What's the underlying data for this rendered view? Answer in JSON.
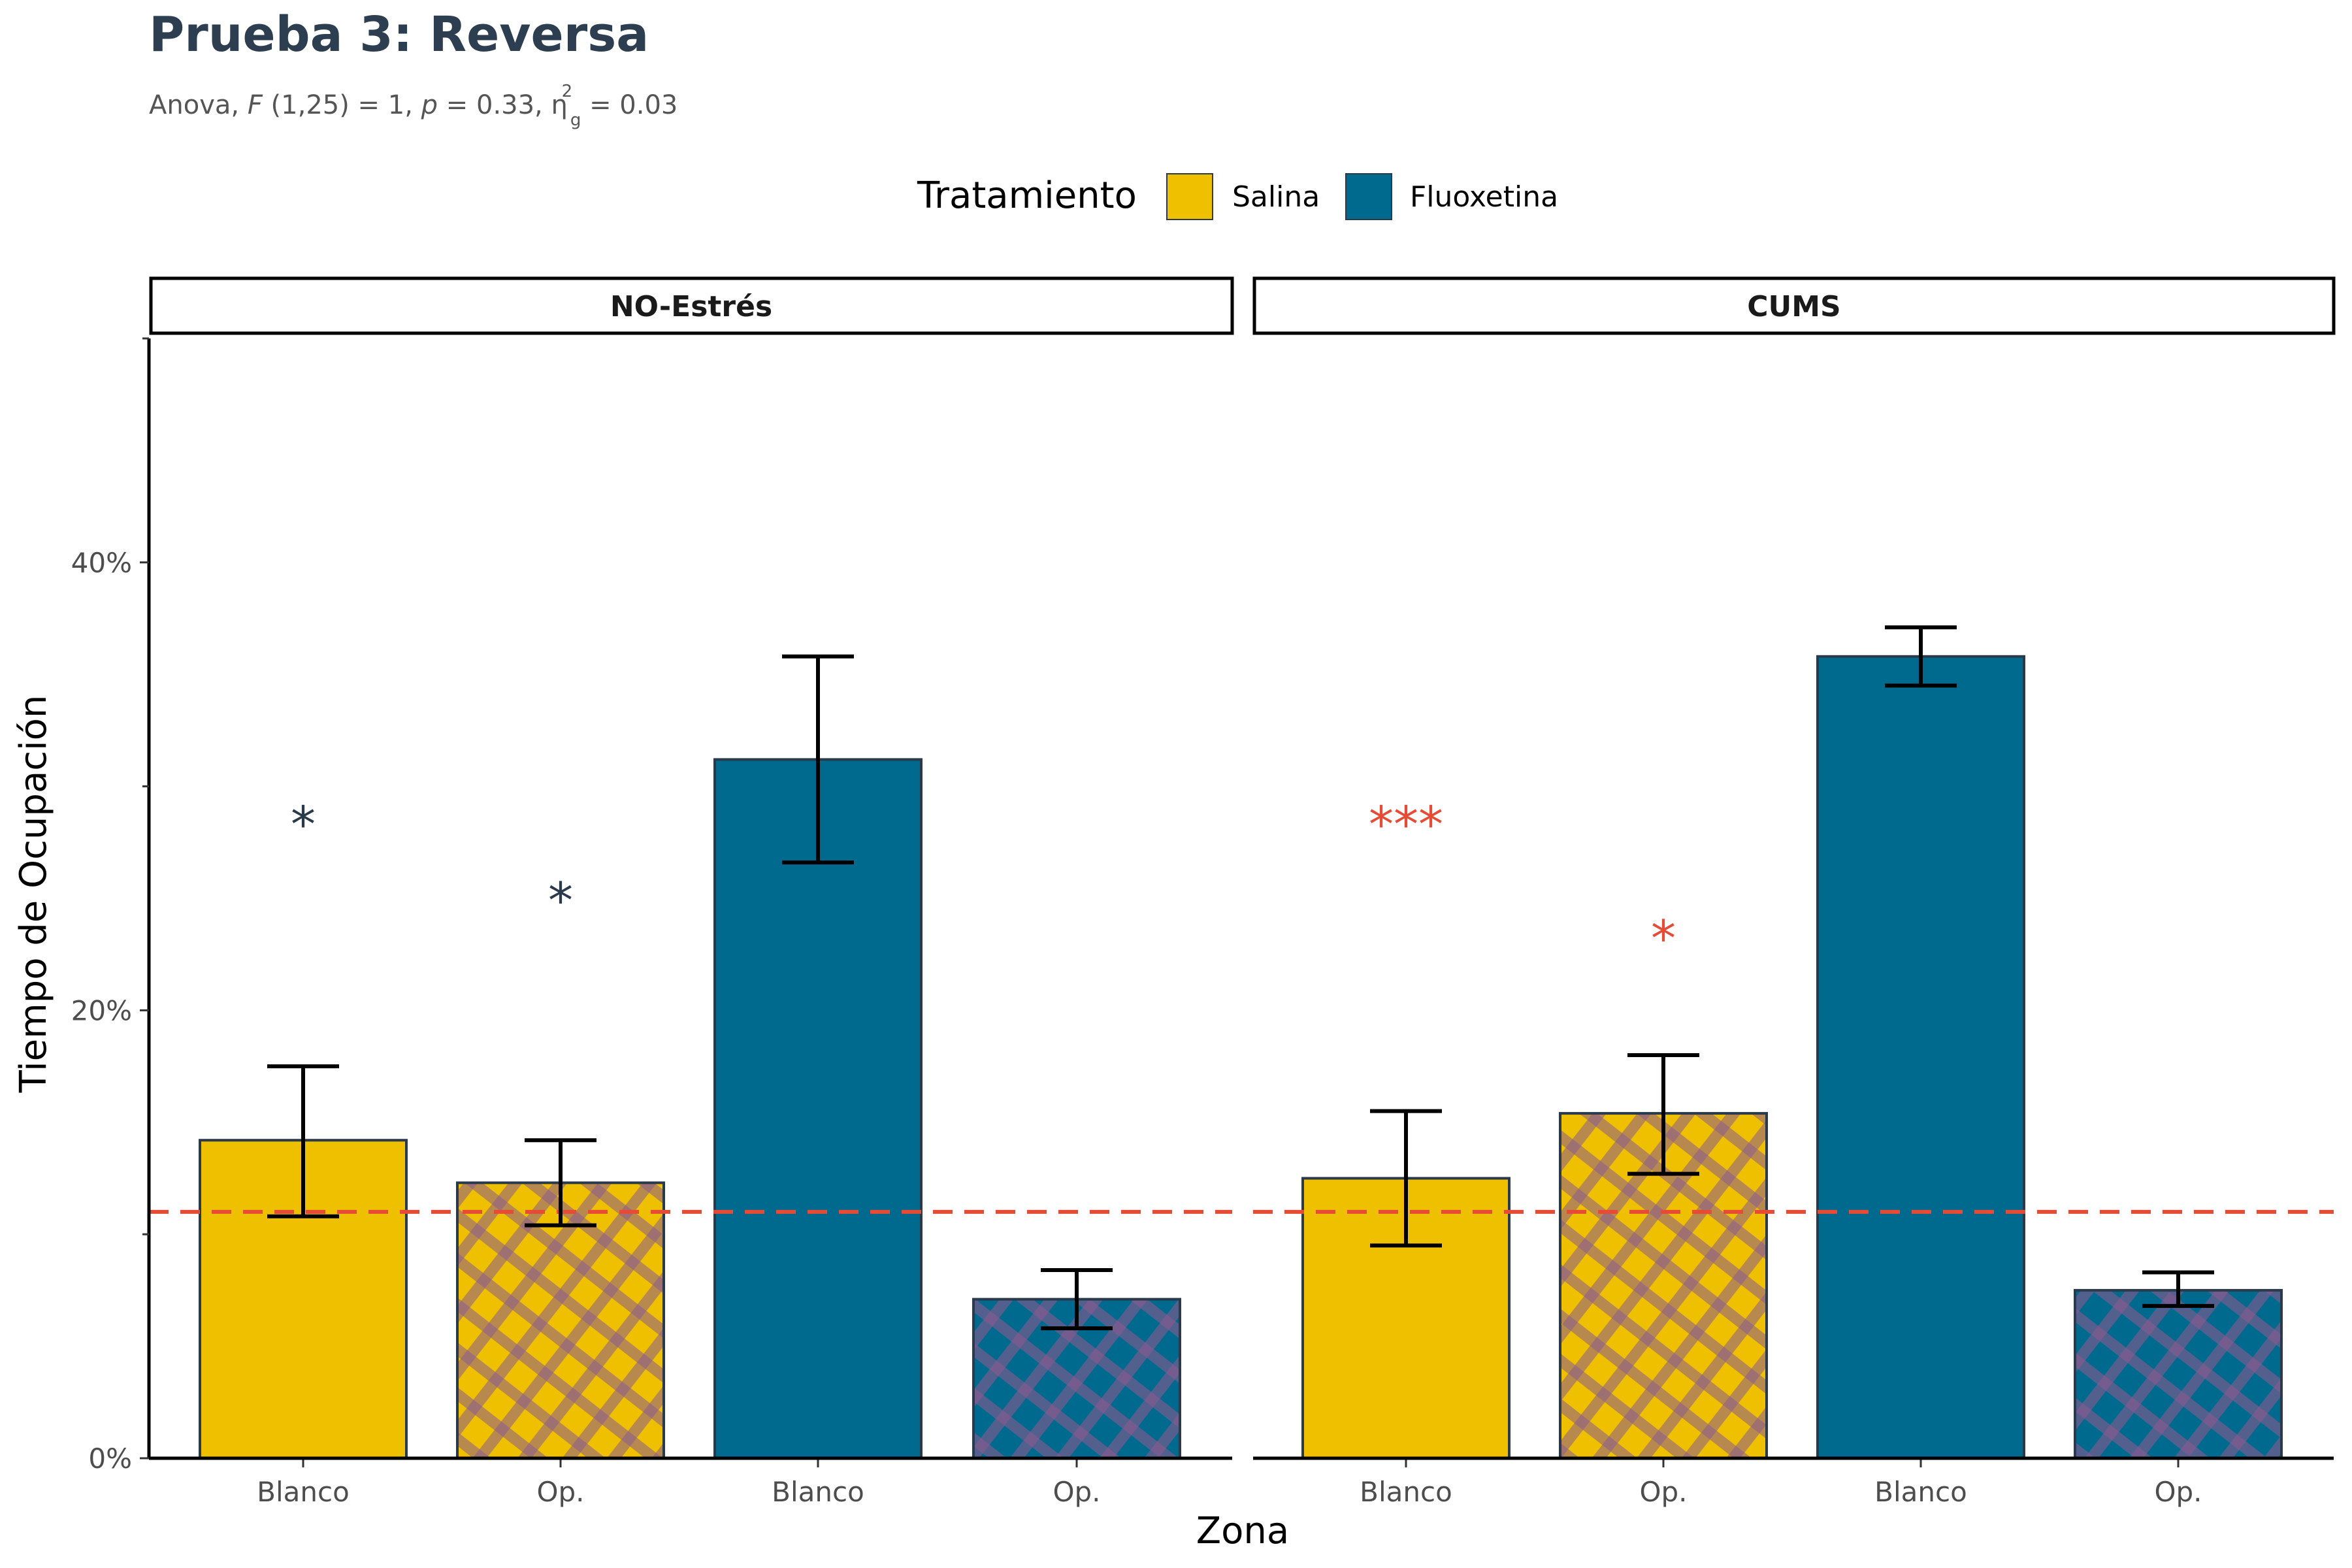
{
  "chart_data": {
    "type": "bar",
    "title": "Prueba 3: Reversa",
    "subtitle": "Anova, F(1,25) = 1, p = 0.33, η²g = 0.03",
    "subtitle_parts": {
      "prefix": "Anova, ",
      "f_symbol": "F",
      "f_args": "(1,25) = 1, ",
      "p_symbol": "p",
      "p_value": " = 0.33, ",
      "eta_symbol": "η",
      "eta_superscript": "2",
      "eta_subscript": "g",
      "eta_value": " = 0.03"
    },
    "xlabel": "Zona",
    "ylabel": "Tiempo de Ocupación",
    "ylim": [
      0,
      50
    ],
    "y_ticks": [
      0,
      20,
      40
    ],
    "y_tick_labels": [
      "0%",
      "20%",
      "40%"
    ],
    "y_minor_ticks": [
      10,
      30,
      50
    ],
    "legend": {
      "title": "Tratamiento",
      "position": "top",
      "entries": [
        {
          "label": "Salina",
          "color": "#EFC000"
        },
        {
          "label": "Fluoxetina",
          "color": "#006A8E"
        }
      ]
    },
    "reference_line": {
      "y": 11,
      "style": "dashed",
      "color": "#E64B35"
    },
    "colors": {
      "salina": "#EFC000",
      "fluoxetina": "#006A8E",
      "bar_outline": "#2B3A4A",
      "pattern_stripe": "#8B5A8E",
      "star_no_estres": "#2B3A4A",
      "star_cums": "#E64B35",
      "title": "#2C3E50"
    },
    "categories": [
      "Blanco",
      "Op.",
      "Blanco",
      "Op."
    ],
    "panels": [
      {
        "strip_label": "NO-Estrés",
        "bars": [
          {
            "zona": "Blanco",
            "tratamiento": "Salina",
            "value": 14.2,
            "err_low": 10.8,
            "err_high": 17.5,
            "pattern": false,
            "annotation": "*"
          },
          {
            "zona": "Op.",
            "tratamiento": "Salina",
            "value": 12.3,
            "err_low": 10.4,
            "err_high": 14.2,
            "pattern": true,
            "annotation": "*"
          },
          {
            "zona": "Blanco",
            "tratamiento": "Fluoxetina",
            "value": 31.2,
            "err_low": 26.6,
            "err_high": 35.8,
            "pattern": false,
            "annotation": ""
          },
          {
            "zona": "Op.",
            "tratamiento": "Fluoxetina",
            "value": 7.1,
            "err_low": 5.8,
            "err_high": 8.4,
            "pattern": true,
            "annotation": ""
          }
        ],
        "annotation_y": [
          28.3,
          24.9,
          null,
          null
        ]
      },
      {
        "strip_label": "CUMS",
        "bars": [
          {
            "zona": "Blanco",
            "tratamiento": "Salina",
            "value": 12.5,
            "err_low": 9.5,
            "err_high": 15.5,
            "pattern": false,
            "annotation": "***"
          },
          {
            "zona": "Op.",
            "tratamiento": "Salina",
            "value": 15.4,
            "err_low": 12.7,
            "err_high": 18.0,
            "pattern": true,
            "annotation": "*"
          },
          {
            "zona": "Blanco",
            "tratamiento": "Fluoxetina",
            "value": 35.8,
            "err_low": 34.5,
            "err_high": 37.1,
            "pattern": false,
            "annotation": ""
          },
          {
            "zona": "Op.",
            "tratamiento": "Fluoxetina",
            "value": 7.5,
            "err_low": 6.8,
            "err_high": 8.3,
            "pattern": true,
            "annotation": ""
          }
        ],
        "annotation_y": [
          28.3,
          23.2,
          null,
          null
        ]
      }
    ]
  }
}
